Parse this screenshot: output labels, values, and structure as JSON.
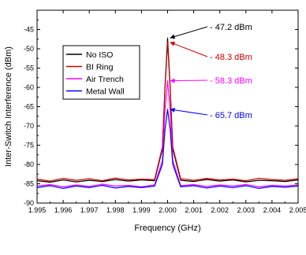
{
  "chart_data": {
    "type": "line",
    "title": "",
    "xlabel": "Frequency (GHz)",
    "ylabel": "Inter-Switch Interference (dBm)",
    "xlim": [
      1.995,
      2.005
    ],
    "ylim": [
      -90,
      -40
    ],
    "xticks": [
      1.995,
      1.996,
      1.997,
      1.998,
      1.999,
      2.0,
      2.001,
      2.002,
      2.003,
      2.004,
      2.005
    ],
    "xtick_labels": [
      "1.995",
      "1.996",
      "1.997",
      "1.998",
      "1.999",
      "2.000",
      "2.001",
      "2.002",
      "2.003",
      "2.004",
      "2.005"
    ],
    "yticks": [
      -90,
      -85,
      -80,
      -75,
      -70,
      -65,
      -60,
      -55,
      -50,
      -45
    ],
    "ytick_labels": [
      "-90",
      "-85",
      "-80",
      "-75",
      "-70",
      "-65",
      "-60",
      "-55",
      "-50",
      "-45"
    ],
    "grid": false,
    "legend_position": "upper-left",
    "series": [
      {
        "name": "No ISO",
        "color": "#000000",
        "peak_value": -47.2,
        "x": [
          1.995,
          1.9955,
          1.996,
          1.9965,
          1.997,
          1.9975,
          1.998,
          1.9985,
          1.999,
          1.9995,
          1.9998,
          1.9999,
          2.0,
          2.0001,
          2.0002,
          2.0005,
          2.001,
          2.0015,
          2.002,
          2.0025,
          2.003,
          2.0035,
          2.004,
          2.0045,
          2.005
        ],
        "y": [
          -84.2,
          -84.6,
          -84.0,
          -84.5,
          -84.1,
          -84.4,
          -83.9,
          -84.3,
          -84.0,
          -84.2,
          -76.0,
          -60.0,
          -47.2,
          -60.0,
          -76.0,
          -84.1,
          -84.4,
          -83.9,
          -84.3,
          -84.0,
          -84.5,
          -84.1,
          -84.2,
          -84.4,
          -84.0
        ]
      },
      {
        "name": "BI Ring",
        "color": "#cc0000",
        "peak_value": -48.3,
        "x": [
          1.995,
          1.9955,
          1.996,
          1.9965,
          1.997,
          1.9975,
          1.998,
          1.9985,
          1.999,
          1.9995,
          1.9998,
          1.9999,
          2.0,
          2.0001,
          2.0002,
          2.0005,
          2.001,
          2.0015,
          2.002,
          2.0025,
          2.003,
          2.0035,
          2.004,
          2.0045,
          2.005
        ],
        "y": [
          -83.8,
          -84.3,
          -83.6,
          -84.1,
          -83.7,
          -84.2,
          -83.5,
          -84.0,
          -83.8,
          -83.9,
          -75.5,
          -60.5,
          -48.3,
          -60.5,
          -75.5,
          -83.7,
          -84.1,
          -83.6,
          -84.0,
          -83.8,
          -84.2,
          -83.6,
          -83.9,
          -84.1,
          -83.7
        ]
      },
      {
        "name": "Air Trench",
        "color": "#ff00ff",
        "peak_value": -58.3,
        "x": [
          1.995,
          1.9955,
          1.996,
          1.9965,
          1.997,
          1.9975,
          1.998,
          1.9985,
          1.999,
          1.9995,
          1.9998,
          1.9999,
          2.0,
          2.0001,
          2.0002,
          2.0005,
          2.001,
          2.0015,
          2.002,
          2.0025,
          2.003,
          2.0035,
          2.004,
          2.0045,
          2.005
        ],
        "y": [
          -85.6,
          -85.2,
          -85.8,
          -85.3,
          -85.7,
          -85.1,
          -85.6,
          -85.4,
          -85.8,
          -85.3,
          -79.0,
          -66.0,
          -58.3,
          -66.0,
          -79.0,
          -85.5,
          -85.2,
          -85.7,
          -85.3,
          -85.6,
          -85.2,
          -85.8,
          -85.4,
          -85.6,
          -85.3
        ]
      },
      {
        "name": "Metal Wall",
        "color": "#0000ff",
        "peak_value": -65.7,
        "x": [
          1.995,
          1.9955,
          1.996,
          1.9965,
          1.997,
          1.9975,
          1.998,
          1.9985,
          1.999,
          1.9995,
          1.9998,
          1.9999,
          2.0,
          2.0001,
          2.0002,
          2.0005,
          2.001,
          2.0015,
          2.002,
          2.0025,
          2.003,
          2.0035,
          2.004,
          2.0045,
          2.005
        ],
        "y": [
          -86.0,
          -85.5,
          -86.2,
          -85.6,
          -86.0,
          -85.4,
          -86.1,
          -85.7,
          -86.0,
          -85.6,
          -80.0,
          -71.0,
          -65.7,
          -71.0,
          -80.0,
          -85.8,
          -85.5,
          -86.1,
          -85.6,
          -86.0,
          -85.5,
          -86.2,
          -85.7,
          -85.9,
          -85.6
        ]
      }
    ],
    "annotations": [
      {
        "text": "- 47.2 dBm",
        "color": "#000000",
        "x": 2.0,
        "y": -47.2
      },
      {
        "text": "- 48.3 dBm",
        "color": "#cc0000",
        "x": 2.0,
        "y": -48.3
      },
      {
        "text": "- 58.3 dBm",
        "color": "#ff00ff",
        "x": 2.0,
        "y": -58.3
      },
      {
        "text": "- 65.7 dBm",
        "color": "#0000ff",
        "x": 2.0,
        "y": -65.7
      }
    ]
  }
}
